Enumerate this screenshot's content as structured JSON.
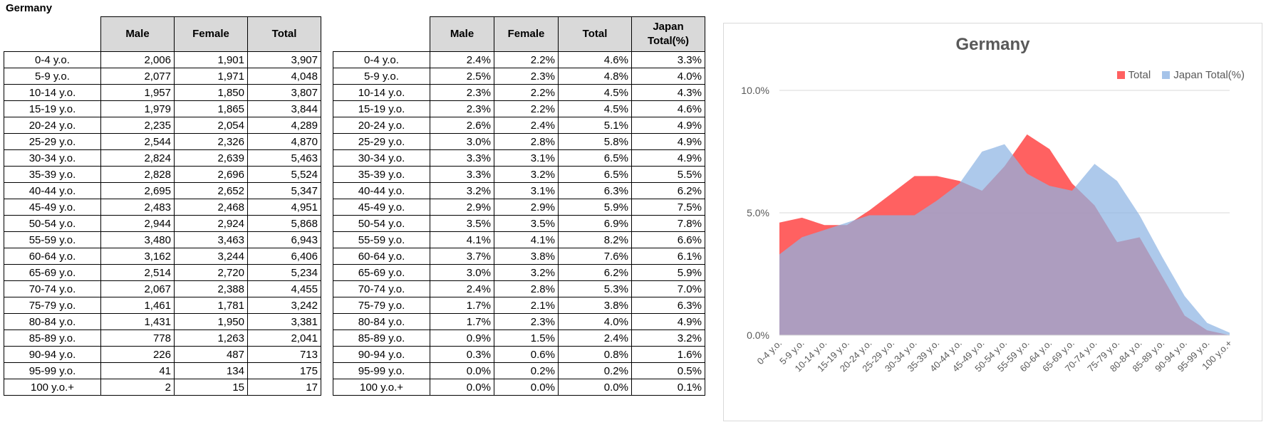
{
  "sheet_title": "Germany",
  "table_counts": {
    "headers": [
      "",
      "Male",
      "Female",
      "Total"
    ],
    "rows": [
      [
        "0-4 y.o.",
        "2,006",
        "1,901",
        "3,907"
      ],
      [
        "5-9 y.o.",
        "2,077",
        "1,971",
        "4,048"
      ],
      [
        "10-14 y.o.",
        "1,957",
        "1,850",
        "3,807"
      ],
      [
        "15-19 y.o.",
        "1,979",
        "1,865",
        "3,844"
      ],
      [
        "20-24 y.o.",
        "2,235",
        "2,054",
        "4,289"
      ],
      [
        "25-29 y.o.",
        "2,544",
        "2,326",
        "4,870"
      ],
      [
        "30-34 y.o.",
        "2,824",
        "2,639",
        "5,463"
      ],
      [
        "35-39 y.o.",
        "2,828",
        "2,696",
        "5,524"
      ],
      [
        "40-44 y.o.",
        "2,695",
        "2,652",
        "5,347"
      ],
      [
        "45-49 y.o.",
        "2,483",
        "2,468",
        "4,951"
      ],
      [
        "50-54 y.o.",
        "2,944",
        "2,924",
        "5,868"
      ],
      [
        "55-59 y.o.",
        "3,480",
        "3,463",
        "6,943"
      ],
      [
        "60-64 y.o.",
        "3,162",
        "3,244",
        "6,406"
      ],
      [
        "65-69 y.o.",
        "2,514",
        "2,720",
        "5,234"
      ],
      [
        "70-74 y.o.",
        "2,067",
        "2,388",
        "4,455"
      ],
      [
        "75-79 y.o.",
        "1,461",
        "1,781",
        "3,242"
      ],
      [
        "80-84 y.o.",
        "1,431",
        "1,950",
        "3,381"
      ],
      [
        "85-89 y.o.",
        "778",
        "1,263",
        "2,041"
      ],
      [
        "90-94 y.o.",
        "226",
        "487",
        "713"
      ],
      [
        "95-99 y.o.",
        "41",
        "134",
        "175"
      ],
      [
        "100 y.o.+",
        "2",
        "15",
        "17"
      ]
    ]
  },
  "table_percent": {
    "headers": [
      "",
      "Male",
      "Female",
      "Total",
      "Japan Total(%)"
    ],
    "rows": [
      [
        "0-4 y.o.",
        "2.4%",
        "2.2%",
        "4.6%",
        "3.3%"
      ],
      [
        "5-9 y.o.",
        "2.5%",
        "2.3%",
        "4.8%",
        "4.0%"
      ],
      [
        "10-14 y.o.",
        "2.3%",
        "2.2%",
        "4.5%",
        "4.3%"
      ],
      [
        "15-19 y.o.",
        "2.3%",
        "2.2%",
        "4.5%",
        "4.6%"
      ],
      [
        "20-24 y.o.",
        "2.6%",
        "2.4%",
        "5.1%",
        "4.9%"
      ],
      [
        "25-29 y.o.",
        "3.0%",
        "2.8%",
        "5.8%",
        "4.9%"
      ],
      [
        "30-34 y.o.",
        "3.3%",
        "3.1%",
        "6.5%",
        "4.9%"
      ],
      [
        "35-39 y.o.",
        "3.3%",
        "3.2%",
        "6.5%",
        "5.5%"
      ],
      [
        "40-44 y.o.",
        "3.2%",
        "3.1%",
        "6.3%",
        "6.2%"
      ],
      [
        "45-49 y.o.",
        "2.9%",
        "2.9%",
        "5.9%",
        "7.5%"
      ],
      [
        "50-54 y.o.",
        "3.5%",
        "3.5%",
        "6.9%",
        "7.8%"
      ],
      [
        "55-59 y.o.",
        "4.1%",
        "4.1%",
        "8.2%",
        "6.6%"
      ],
      [
        "60-64 y.o.",
        "3.7%",
        "3.8%",
        "7.6%",
        "6.1%"
      ],
      [
        "65-69 y.o.",
        "3.0%",
        "3.2%",
        "6.2%",
        "5.9%"
      ],
      [
        "70-74 y.o.",
        "2.4%",
        "2.8%",
        "5.3%",
        "7.0%"
      ],
      [
        "75-79 y.o.",
        "1.7%",
        "2.1%",
        "3.8%",
        "6.3%"
      ],
      [
        "80-84 y.o.",
        "1.7%",
        "2.3%",
        "4.0%",
        "4.9%"
      ],
      [
        "85-89 y.o.",
        "0.9%",
        "1.5%",
        "2.4%",
        "3.2%"
      ],
      [
        "90-94 y.o.",
        "0.3%",
        "0.6%",
        "0.8%",
        "1.6%"
      ],
      [
        "95-99 y.o.",
        "0.0%",
        "0.2%",
        "0.2%",
        "0.5%"
      ],
      [
        "100 y.o.+",
        "0.0%",
        "0.0%",
        "0.0%",
        "0.1%"
      ]
    ]
  },
  "chart_data": {
    "type": "area",
    "title": "Germany",
    "categories": [
      "0-4 y.o.",
      "5-9 y.o.",
      "10-14 y.o.",
      "15-19 y.o.",
      "20-24 y.o.",
      "25-29 y.o.",
      "30-34 y.o.",
      "35-39 y.o.",
      "40-44 y.o.",
      "45-49 y.o.",
      "50-54 y.o.",
      "55-59 y.o.",
      "60-64 y.o.",
      "65-69 y.o.",
      "70-74 y.o.",
      "75-79 y.o.",
      "80-84 y.o.",
      "85-89 y.o.",
      "90-94 y.o.",
      "95-99 y.o.",
      "100 y.o.+"
    ],
    "series": [
      {
        "name": "Total",
        "color": "#ff5050",
        "values": [
          4.6,
          4.8,
          4.5,
          4.5,
          5.1,
          5.8,
          6.5,
          6.5,
          6.3,
          5.9,
          6.9,
          8.2,
          7.6,
          6.2,
          5.3,
          3.8,
          4.0,
          2.4,
          0.8,
          0.2,
          0.0
        ]
      },
      {
        "name": "Japan Total(%)",
        "color": "#8eb4e3",
        "values": [
          3.3,
          4.0,
          4.3,
          4.6,
          4.9,
          4.9,
          4.9,
          5.5,
          6.2,
          7.5,
          7.8,
          6.6,
          6.1,
          5.9,
          7.0,
          6.3,
          4.9,
          3.2,
          1.6,
          0.5,
          0.1
        ]
      }
    ],
    "yticks": [
      "0.0%",
      "5.0%",
      "10.0%"
    ],
    "ylim": [
      0,
      10
    ],
    "grid": true,
    "legend": "top-right"
  }
}
